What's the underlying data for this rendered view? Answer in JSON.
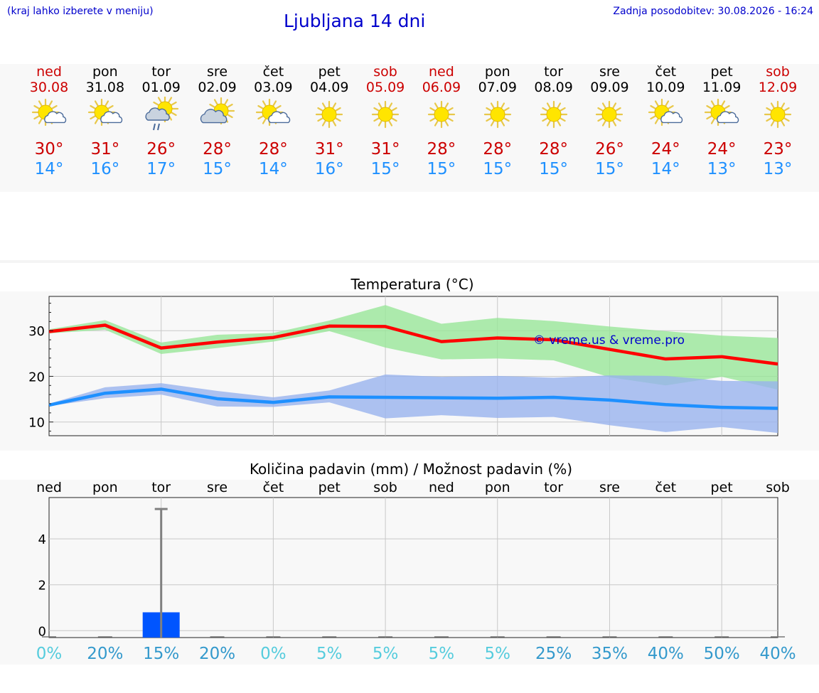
{
  "header": {
    "hint": "(kraj lahko izberete v meniju)",
    "title": "Ljubljana 14 dni",
    "updated": "Zadnja posodobitev: 30.08.2026 - 16:24"
  },
  "days": [
    {
      "name": "ned",
      "date": "30.08",
      "weekend": true,
      "icon": "sun-cloud-icon",
      "tmax": "30°",
      "tmin": "14°"
    },
    {
      "name": "pon",
      "date": "31.08",
      "weekend": false,
      "icon": "sun-cloud-icon",
      "tmax": "31°",
      "tmin": "16°"
    },
    {
      "name": "tor",
      "date": "01.09",
      "weekend": false,
      "icon": "sun-cloud-rain-icon",
      "tmax": "26°",
      "tmin": "17°"
    },
    {
      "name": "sre",
      "date": "02.09",
      "weekend": false,
      "icon": "cloud-sun-icon",
      "tmax": "28°",
      "tmin": "15°"
    },
    {
      "name": "čet",
      "date": "03.09",
      "weekend": false,
      "icon": "sun-cloud-icon",
      "tmax": "28°",
      "tmin": "14°"
    },
    {
      "name": "pet",
      "date": "04.09",
      "weekend": false,
      "icon": "sun-icon",
      "tmax": "31°",
      "tmin": "16°"
    },
    {
      "name": "sob",
      "date": "05.09",
      "weekend": true,
      "icon": "sun-icon",
      "tmax": "31°",
      "tmin": "15°"
    },
    {
      "name": "ned",
      "date": "06.09",
      "weekend": true,
      "icon": "sun-icon",
      "tmax": "28°",
      "tmin": "15°"
    },
    {
      "name": "pon",
      "date": "07.09",
      "weekend": false,
      "icon": "sun-icon",
      "tmax": "28°",
      "tmin": "15°"
    },
    {
      "name": "tor",
      "date": "08.09",
      "weekend": false,
      "icon": "sun-icon",
      "tmax": "28°",
      "tmin": "15°"
    },
    {
      "name": "sre",
      "date": "09.09",
      "weekend": false,
      "icon": "sun-icon",
      "tmax": "26°",
      "tmin": "15°"
    },
    {
      "name": "čet",
      "date": "10.09",
      "weekend": false,
      "icon": "sun-cloud-icon",
      "tmax": "24°",
      "tmin": "14°"
    },
    {
      "name": "pet",
      "date": "11.09",
      "weekend": false,
      "icon": "sun-cloud-icon",
      "tmax": "24°",
      "tmin": "13°"
    },
    {
      "name": "sob",
      "date": "12.09",
      "weekend": true,
      "icon": "sun-icon",
      "tmax": "23°",
      "tmin": "13°"
    }
  ],
  "colors": {
    "weekend_red": "#cc0000",
    "max_line": "#ff0000",
    "min_line": "#1e90ff",
    "max_band": "#99e699",
    "min_band": "#99b3ee",
    "bar": "#0055ff",
    "errorbar": "#808080",
    "percent_low": "#55ccdd",
    "percent_high": "#3399cc",
    "watermark": "#0000cc"
  },
  "chart_data": [
    {
      "type": "line",
      "title": "Temperatura (°C)",
      "x": [
        "30.08",
        "31.08",
        "01.09",
        "02.09",
        "03.09",
        "04.09",
        "05.09",
        "06.09",
        "07.09",
        "08.09",
        "09.09",
        "10.09",
        "11.09",
        "12.09"
      ],
      "series": [
        {
          "values": [
            29.8,
            31.2,
            26.2,
            27.5,
            28.5,
            31.0,
            30.9,
            27.6,
            28.4,
            28.0,
            25.9,
            23.8,
            24.3,
            22.7
          ]
        },
        {
          "values": [
            13.7,
            16.3,
            17.2,
            15.1,
            14.3,
            15.5,
            15.4,
            15.3,
            15.2,
            15.4,
            14.8,
            13.8,
            13.2,
            13.0
          ]
        }
      ],
      "bands": [
        {
          "upper": [
            30.3,
            32.3,
            27.4,
            29.1,
            29.5,
            32.2,
            35.6,
            31.5,
            32.8,
            32.1,
            30.9,
            29.9,
            28.9,
            28.4
          ],
          "lower": [
            29.4,
            30.2,
            24.9,
            26.2,
            27.6,
            29.9,
            26.3,
            23.7,
            23.9,
            23.5,
            19.8,
            18.0,
            19.9,
            17.1
          ]
        },
        {
          "upper": [
            14.0,
            17.6,
            18.5,
            16.8,
            15.4,
            16.9,
            20.4,
            19.9,
            20.1,
            19.7,
            20.2,
            20.1,
            19.0,
            18.9
          ],
          "lower": [
            13.5,
            15.2,
            16.0,
            13.4,
            13.3,
            14.3,
            10.8,
            11.5,
            10.9,
            11.1,
            9.3,
            7.8,
            8.9,
            7.6
          ]
        }
      ],
      "ylim": [
        7,
        37.5
      ],
      "yticks": [
        10,
        20,
        30
      ],
      "grid": true,
      "annotation": "© vreme.us & vreme.pro"
    },
    {
      "type": "bar",
      "title": "Količina padavin (mm) / Možnost padavin (%)",
      "categories": [
        "ned",
        "pon",
        "tor",
        "sre",
        "čet",
        "pet",
        "sob",
        "ned",
        "pon",
        "tor",
        "sre",
        "čet",
        "pet",
        "sob"
      ],
      "values": [
        0,
        0,
        0.8,
        0,
        0,
        0,
        0,
        0,
        0,
        0,
        0,
        0,
        0,
        0
      ],
      "error_upper": [
        0,
        0,
        5.3,
        0,
        0,
        0,
        0,
        0,
        0,
        0,
        0,
        0,
        0,
        0
      ],
      "chance": [
        "0%",
        "20%",
        "15%",
        "20%",
        "0%",
        "5%",
        "5%",
        "5%",
        "5%",
        "25%",
        "35%",
        "40%",
        "50%",
        "40%"
      ],
      "ylim": [
        -0.3,
        5.8
      ],
      "yticks": [
        0,
        2,
        4
      ],
      "grid": true
    }
  ]
}
